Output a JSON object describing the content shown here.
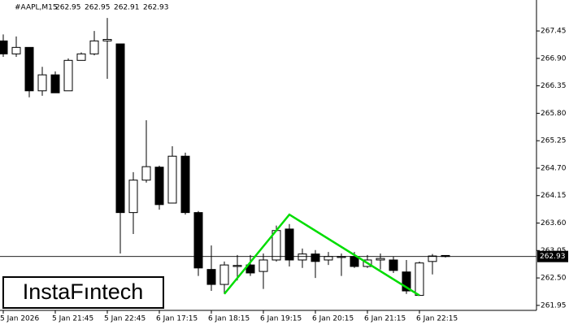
{
  "chart_data": {
    "type": "candlestick",
    "title": "#AAPL,M15",
    "categories": [
      "5 Jan 2026",
      null,
      null,
      null,
      "5 Jan 21:45",
      null,
      null,
      null,
      "5 Jan 22:45",
      null,
      null,
      null,
      "6 Jan 17:15",
      null,
      null,
      null,
      "6 Jan 18:15",
      null,
      null,
      null,
      "6 Jan 19:15",
      null,
      null,
      null,
      "6 Jan 20:15",
      null,
      null,
      null,
      "6 Jan 21:15",
      null,
      null,
      null,
      "6 Jan 22:15",
      null,
      null
    ],
    "open": [
      267.25,
      266.99,
      267.12,
      266.25,
      266.57,
      266.25,
      266.86,
      266.99,
      267.25,
      267.19,
      263.81,
      264.46,
      264.72,
      264.0,
      264.94,
      263.81,
      262.67,
      262.37,
      262.73,
      262.76,
      262.63,
      262.86,
      263.48,
      262.86,
      262.98,
      262.86,
      262.91,
      262.93,
      262.73,
      262.86,
      262.86,
      262.62,
      262.15,
      262.83,
      262.95
    ],
    "high": [
      267.38,
      267.34,
      267.12,
      266.73,
      266.64,
      266.9,
      267.02,
      267.45,
      267.71,
      267.19,
      264.62,
      265.66,
      264.75,
      265.14,
      265.01,
      263.84,
      263.15,
      262.83,
      262.96,
      262.96,
      262.99,
      263.55,
      263.58,
      263.09,
      263.06,
      263.02,
      262.99,
      263.02,
      262.96,
      262.99,
      262.93,
      262.86,
      262.83,
      262.98,
      262.95
    ],
    "low": [
      266.93,
      266.93,
      266.12,
      266.15,
      266.21,
      266.25,
      266.86,
      266.96,
      266.49,
      262.99,
      263.38,
      264.41,
      263.87,
      264.0,
      263.77,
      262.54,
      262.24,
      262.18,
      262.45,
      262.54,
      262.28,
      262.83,
      262.73,
      262.7,
      262.5,
      262.76,
      262.54,
      262.7,
      262.7,
      262.67,
      262.6,
      262.18,
      262.15,
      262.57,
      262.91
    ],
    "close": [
      266.99,
      267.12,
      266.25,
      266.57,
      266.21,
      266.86,
      266.99,
      267.25,
      267.28,
      263.81,
      264.46,
      264.73,
      263.97,
      264.94,
      263.81,
      262.7,
      262.37,
      262.76,
      262.75,
      262.6,
      262.86,
      263.45,
      262.86,
      262.98,
      262.83,
      262.93,
      262.93,
      262.73,
      262.86,
      262.89,
      262.65,
      262.24,
      262.8,
      262.94,
      262.93
    ],
    "up_color": "#ffffff",
    "down_color": "#000000",
    "ylim": [
      261.85,
      268.07
    ],
    "yticks": [
      261.95,
      {
        "value": 262.5,
        "label": "262.50"
      },
      263.05,
      {
        "value": 263.6,
        "label": "263.60"
      },
      264.15,
      {
        "value": 264.7,
        "label": "264.70"
      },
      265.25,
      {
        "value": 265.8,
        "label": "265.80"
      },
      266.35,
      {
        "value": 266.9,
        "label": "266.90"
      },
      267.45
    ],
    "current_price": 262.93,
    "pattern": {
      "color": "#00dd00",
      "points": [
        {
          "index": 17,
          "value": 262.18
        },
        {
          "index": 22,
          "value": 263.77
        },
        {
          "index": 32,
          "value": 262.15
        }
      ]
    },
    "watermark": "InstaFıntech"
  }
}
